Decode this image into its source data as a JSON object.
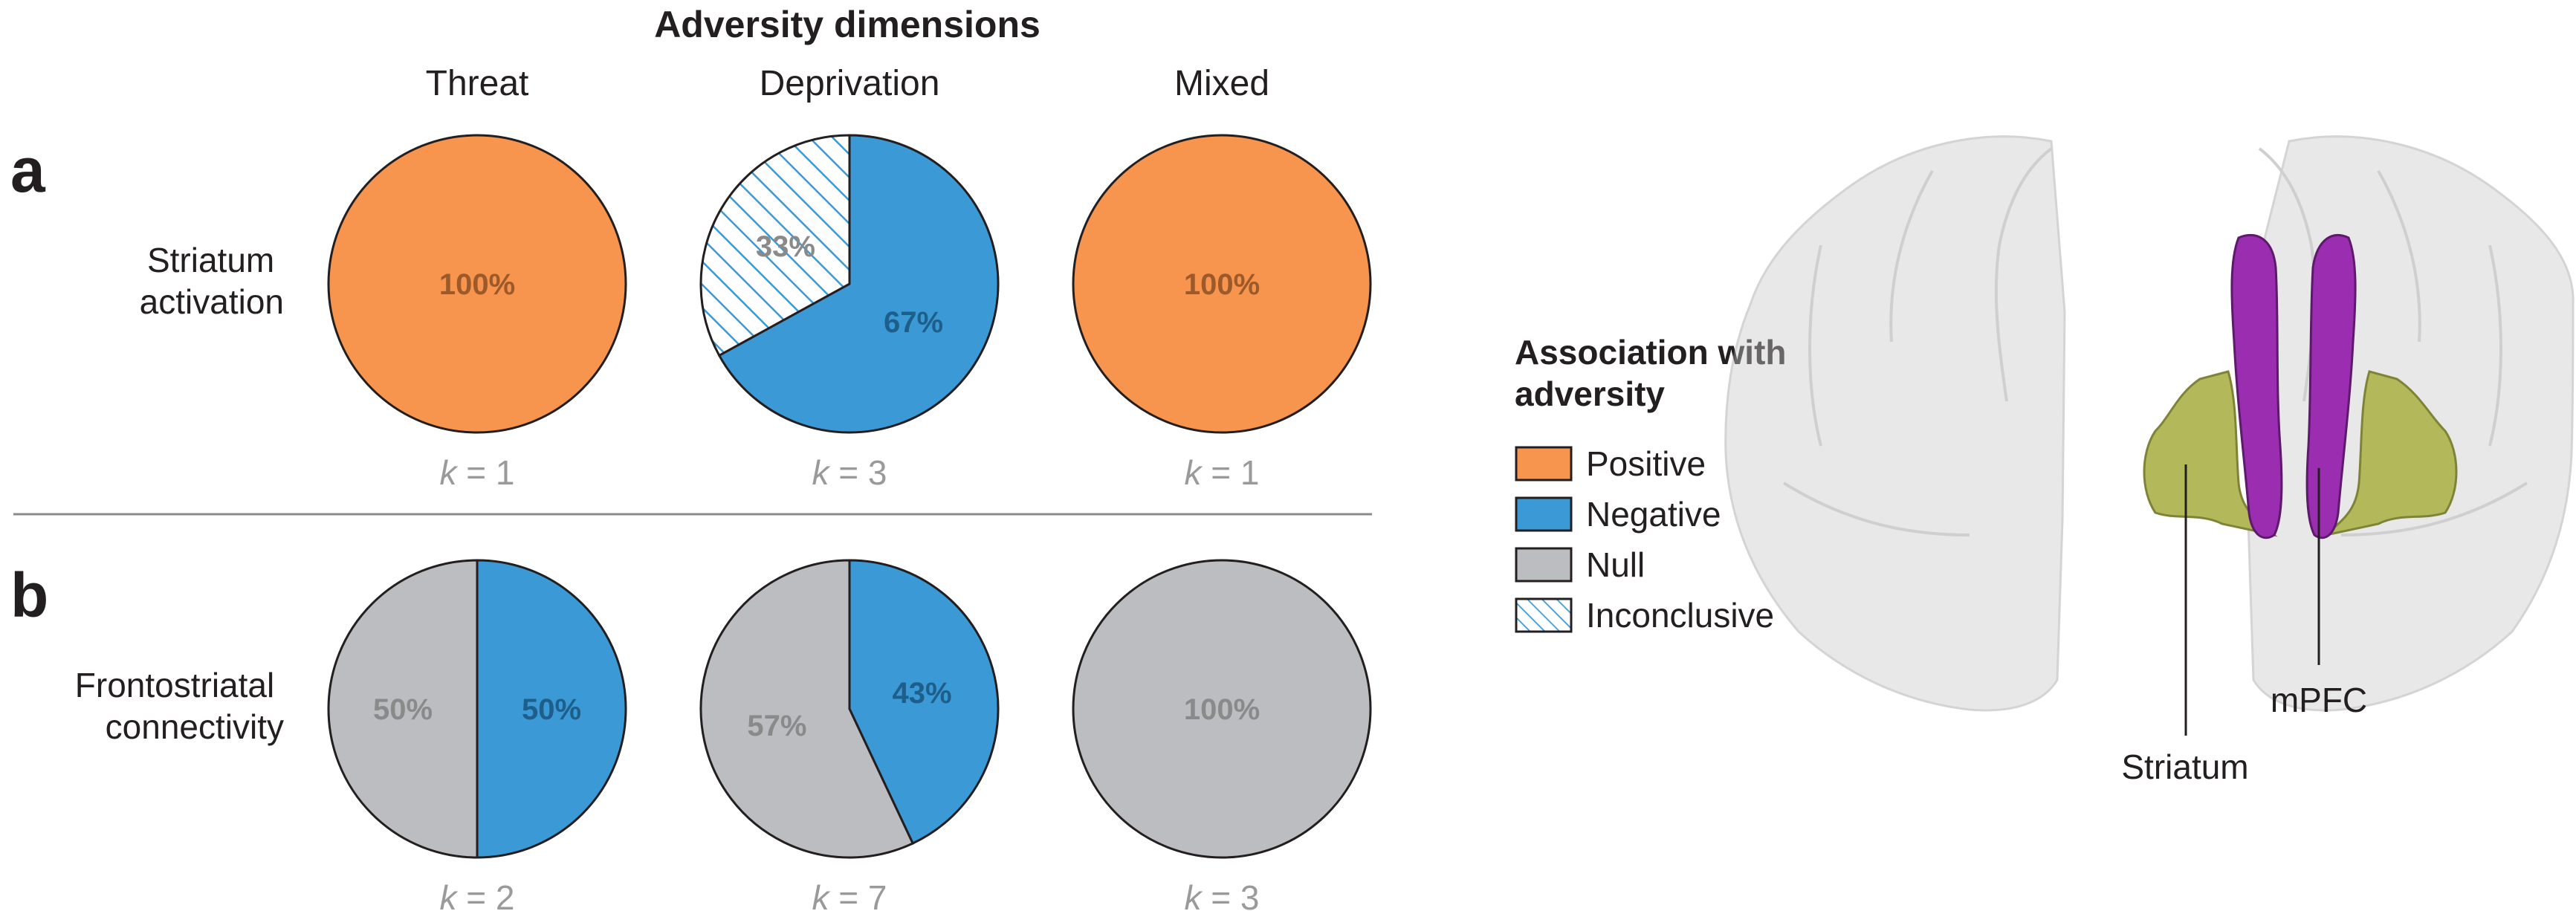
{
  "title": "Adversity dimensions",
  "columns": [
    "Threat",
    "Deprivation",
    "Mixed"
  ],
  "panels": [
    {
      "letter": "a",
      "row_label": [
        "Striatum",
        "activation"
      ]
    },
    {
      "letter": "b",
      "row_label": [
        "Frontostriatal",
        "connectivity"
      ]
    }
  ],
  "colors": {
    "positive": "#f7944d",
    "negative": "#3b9ad6",
    "null": "#bcbdc0",
    "inconclusive_hatch": "#3b9ad6",
    "text_dark": "#231f20",
    "text_grey": "#9a9a9a",
    "text_on_orange": "#9c5a2a",
    "text_on_blue": "#1d5f8a",
    "text_on_grey": "#8a8a8a",
    "striatum": "#b3b85a",
    "mpfc": "#9a2db0",
    "brain": "#bdbdbd"
  },
  "legend": {
    "title": [
      "Association with",
      "adversity"
    ],
    "items": [
      {
        "label": "Positive",
        "key": "positive"
      },
      {
        "label": "Negative",
        "key": "negative"
      },
      {
        "label": "Null",
        "key": "null"
      },
      {
        "label": "Inconclusive",
        "key": "inconclusive"
      }
    ]
  },
  "chart_data": [
    {
      "type": "pie",
      "panel": "a",
      "column": "Threat",
      "k": "1",
      "slices": [
        {
          "category": "positive",
          "value": 100,
          "label": "100%"
        }
      ]
    },
    {
      "type": "pie",
      "panel": "a",
      "column": "Deprivation",
      "k": "3",
      "slices": [
        {
          "category": "negative",
          "value": 67,
          "label": "67%"
        },
        {
          "category": "inconclusive",
          "value": 33,
          "label": "33%"
        }
      ]
    },
    {
      "type": "pie",
      "panel": "a",
      "column": "Mixed",
      "k": "1",
      "slices": [
        {
          "category": "positive",
          "value": 100,
          "label": "100%"
        }
      ]
    },
    {
      "type": "pie",
      "panel": "b",
      "column": "Threat",
      "k": "2",
      "slices": [
        {
          "category": "negative",
          "value": 50,
          "label": "50%"
        },
        {
          "category": "null",
          "value": 50,
          "label": "50%"
        }
      ]
    },
    {
      "type": "pie",
      "panel": "b",
      "column": "Deprivation",
      "k": "7",
      "slices": [
        {
          "category": "negative",
          "value": 43,
          "label": "43%"
        },
        {
          "category": "null",
          "value": 57,
          "label": "57%"
        }
      ]
    },
    {
      "type": "pie",
      "panel": "b",
      "column": "Mixed",
      "k": "3",
      "slices": [
        {
          "category": "null",
          "value": 100,
          "label": "100%"
        }
      ]
    }
  ],
  "brain": {
    "labels": {
      "striatum": "Striatum",
      "mpfc": "mPFC"
    }
  }
}
